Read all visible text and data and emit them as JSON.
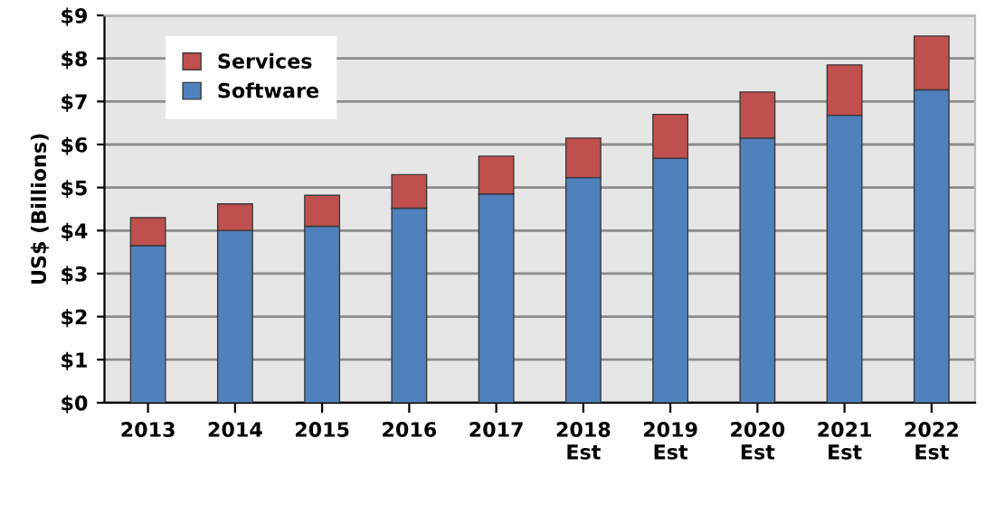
{
  "chart_data": {
    "type": "bar",
    "stacked": true,
    "ylabel": "US$ (Billions)",
    "categories": [
      "2013",
      "2014",
      "2015",
      "2016",
      "2017",
      "2018\nEst",
      "2019\nEst",
      "2020\nEst",
      "2021\nEst",
      "2022\nEst"
    ],
    "series": [
      {
        "name": "Software",
        "color": "#4f81bd",
        "values": [
          3.65,
          4.0,
          4.1,
          4.52,
          4.85,
          5.23,
          5.68,
          6.15,
          6.68,
          7.27
        ]
      },
      {
        "name": "Services",
        "color": "#c0504d",
        "values": [
          0.65,
          0.62,
          0.72,
          0.78,
          0.88,
          0.92,
          1.02,
          1.07,
          1.17,
          1.25
        ]
      }
    ],
    "ylim": [
      0,
      9
    ],
    "yticks": [
      {
        "value": 0,
        "label": "$0"
      },
      {
        "value": 1,
        "label": "$1"
      },
      {
        "value": 2,
        "label": "$2"
      },
      {
        "value": 3,
        "label": "$3"
      },
      {
        "value": 4,
        "label": "$4"
      },
      {
        "value": 5,
        "label": "$5"
      },
      {
        "value": 6,
        "label": "$6"
      },
      {
        "value": 7,
        "label": "$7"
      },
      {
        "value": 8,
        "label": "$8"
      },
      {
        "value": 9,
        "label": "$9"
      }
    ],
    "grid": "y",
    "legend": "top left"
  }
}
